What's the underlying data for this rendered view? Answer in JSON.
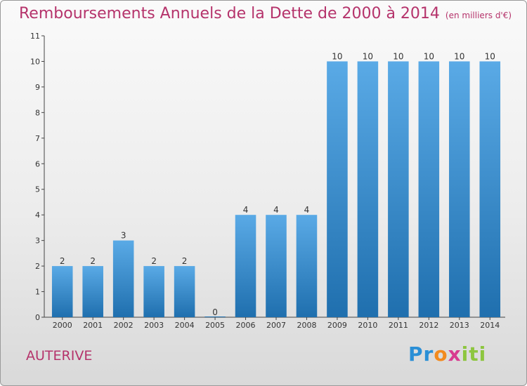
{
  "header": {
    "title": "Remboursements Annuels de la Dette de 2000 à 2014",
    "unit": "(en milliers d'€)"
  },
  "footer": {
    "town": "AUTERIVE",
    "logo_letters": [
      "P",
      "r",
      "o",
      "x",
      "i",
      "t",
      "i"
    ],
    "logo_colors": [
      "#2a8fd6",
      "#2a8fd6",
      "#f28a1e",
      "#d83a8f",
      "#8dc63f",
      "#8dc63f",
      "#8dc63f"
    ]
  },
  "chart_data": {
    "type": "bar",
    "categories": [
      "2000",
      "2001",
      "2002",
      "2003",
      "2004",
      "2005",
      "2006",
      "2007",
      "2008",
      "2009",
      "2010",
      "2011",
      "2012",
      "2013",
      "2014"
    ],
    "values": [
      2,
      2,
      3,
      2,
      2,
      0,
      4,
      4,
      4,
      10,
      10,
      10,
      10,
      10,
      10
    ],
    "ylim": [
      0,
      11
    ],
    "yticks": [
      0,
      1,
      2,
      3,
      4,
      5,
      6,
      7,
      8,
      9,
      10,
      11
    ],
    "grid": false,
    "bar_color_light": "#5aaae6",
    "bar_color_dark": "#1f6fae"
  }
}
